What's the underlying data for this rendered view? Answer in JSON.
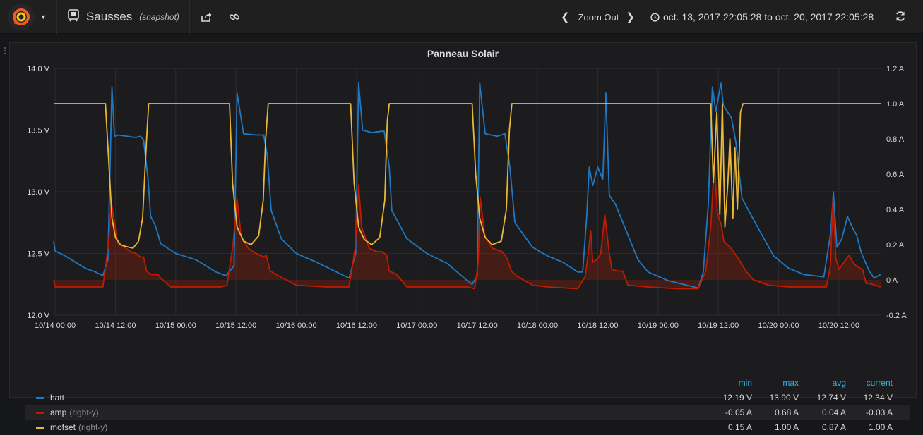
{
  "navbar": {
    "dashboard_name": "Sausses",
    "snapshot_label": "(snapshot)",
    "zoom_out_label": "Zoom Out",
    "time_range": "oct. 13, 2017 22:05:28 to oct. 20, 2017 22:05:28"
  },
  "panel": {
    "title": "Panneau Solair"
  },
  "legend": {
    "headers": {
      "min": "min",
      "max": "max",
      "avg": "avg",
      "current": "current"
    },
    "series": [
      {
        "name": "batt",
        "axis": "",
        "color": "#1f78c1",
        "min": "12.19 V",
        "max": "13.90 V",
        "avg": "12.74 V",
        "current": "12.34 V"
      },
      {
        "name": "amp",
        "axis": "(right-y)",
        "color": "#bf1b00",
        "min": "-0.05 A",
        "max": "0.68 A",
        "avg": "0.04 A",
        "current": "-0.03 A"
      },
      {
        "name": "mofset",
        "axis": "(right-y)",
        "color": "#eab839",
        "min": "0.15 A",
        "max": "1.00 A",
        "avg": "0.87 A",
        "current": "1.00 A"
      }
    ]
  },
  "chart_data": {
    "type": "line",
    "title": "Panneau Solair",
    "x_range_hours": [
      -0.3,
      164.3
    ],
    "x_ticks": [
      {
        "h": 0,
        "label": "10/14 00:00"
      },
      {
        "h": 12,
        "label": "10/14 12:00"
      },
      {
        "h": 24,
        "label": "10/15 00:00"
      },
      {
        "h": 36,
        "label": "10/15 12:00"
      },
      {
        "h": 48,
        "label": "10/16 00:00"
      },
      {
        "h": 60,
        "label": "10/16 12:00"
      },
      {
        "h": 72,
        "label": "10/17 00:00"
      },
      {
        "h": 84,
        "label": "10/17 12:00"
      },
      {
        "h": 96,
        "label": "10/18 00:00"
      },
      {
        "h": 108,
        "label": "10/18 12:00"
      },
      {
        "h": 120,
        "label": "10/19 00:00"
      },
      {
        "h": 132,
        "label": "10/19 12:00"
      },
      {
        "h": 144,
        "label": "10/20 00:00"
      },
      {
        "h": 156,
        "label": "10/20 12:00"
      }
    ],
    "y_left": {
      "min": 12.0,
      "max": 14.0,
      "ticks": [
        {
          "v": 12.0,
          "label": "12.0 V"
        },
        {
          "v": 12.5,
          "label": "12.5 V"
        },
        {
          "v": 13.0,
          "label": "13.0 V"
        },
        {
          "v": 13.5,
          "label": "13.5 V"
        },
        {
          "v": 14.0,
          "label": "14.0 V"
        }
      ]
    },
    "y_right": {
      "min": -0.2,
      "max": 1.2,
      "ticks": [
        {
          "v": -0.2,
          "label": "-0.2 A"
        },
        {
          "v": 0.0,
          "label": "0 A"
        },
        {
          "v": 0.2,
          "label": "0.2 A"
        },
        {
          "v": 0.4,
          "label": "0.4 A"
        },
        {
          "v": 0.6,
          "label": "0.6 A"
        },
        {
          "v": 0.8,
          "label": "0.8 A"
        },
        {
          "v": 1.0,
          "label": "1.0 A"
        },
        {
          "v": 1.2,
          "label": "1.2 A"
        }
      ]
    },
    "series": [
      {
        "name": "batt",
        "axis": "left",
        "color": "#1f78c1",
        "points": [
          [
            -0.3,
            12.6
          ],
          [
            0,
            12.52
          ],
          [
            2,
            12.48
          ],
          [
            4,
            12.43
          ],
          [
            6,
            12.38
          ],
          [
            8,
            12.35
          ],
          [
            9.5,
            12.32
          ],
          [
            10.5,
            12.45
          ],
          [
            11.3,
            13.85
          ],
          [
            11.8,
            13.45
          ],
          [
            12.5,
            13.46
          ],
          [
            16,
            13.44
          ],
          [
            17,
            13.45
          ],
          [
            17.6,
            13.42
          ],
          [
            18.5,
            13.1
          ],
          [
            19,
            12.8
          ],
          [
            20,
            12.72
          ],
          [
            21,
            12.58
          ],
          [
            24,
            12.5
          ],
          [
            28,
            12.45
          ],
          [
            32,
            12.35
          ],
          [
            34,
            12.32
          ],
          [
            35.6,
            12.4
          ],
          [
            36.2,
            13.8
          ],
          [
            37.5,
            13.47
          ],
          [
            40,
            13.46
          ],
          [
            41.5,
            13.46
          ],
          [
            42.2,
            13.3
          ],
          [
            43,
            12.85
          ],
          [
            45,
            12.62
          ],
          [
            48,
            12.5
          ],
          [
            52,
            12.43
          ],
          [
            56,
            12.35
          ],
          [
            58.5,
            12.3
          ],
          [
            59.8,
            12.5
          ],
          [
            60.4,
            13.88
          ],
          [
            61.2,
            13.5
          ],
          [
            63,
            13.48
          ],
          [
            65,
            13.49
          ],
          [
            65.5,
            13.49
          ],
          [
            66.5,
            13.2
          ],
          [
            67,
            12.85
          ],
          [
            70,
            12.62
          ],
          [
            74,
            12.5
          ],
          [
            78,
            12.42
          ],
          [
            80,
            12.35
          ],
          [
            82,
            12.28
          ],
          [
            83,
            12.25
          ],
          [
            84,
            12.32
          ],
          [
            84.5,
            13.88
          ],
          [
            85.6,
            13.47
          ],
          [
            88,
            13.45
          ],
          [
            89.5,
            13.47
          ],
          [
            90.5,
            13.2
          ],
          [
            91.5,
            12.75
          ],
          [
            95,
            12.55
          ],
          [
            98,
            12.48
          ],
          [
            101,
            12.43
          ],
          [
            104,
            12.35
          ],
          [
            105,
            12.35
          ],
          [
            105.8,
            12.8
          ],
          [
            106.3,
            13.2
          ],
          [
            107,
            13.05
          ],
          [
            108,
            13.2
          ],
          [
            109,
            13.1
          ],
          [
            109.6,
            13.8
          ],
          [
            110.3,
            12.97
          ],
          [
            111.5,
            12.9
          ],
          [
            113.5,
            12.7
          ],
          [
            116,
            12.45
          ],
          [
            118,
            12.35
          ],
          [
            122,
            12.28
          ],
          [
            126,
            12.24
          ],
          [
            128,
            12.22
          ],
          [
            129,
            12.35
          ],
          [
            130,
            12.9
          ],
          [
            130.8,
            13.85
          ],
          [
            131.5,
            13.65
          ],
          [
            132.5,
            13.88
          ],
          [
            133,
            13.7
          ],
          [
            134.6,
            13.6
          ],
          [
            135.5,
            13.4
          ],
          [
            136.7,
            12.95
          ],
          [
            138,
            12.85
          ],
          [
            140,
            12.7
          ],
          [
            143,
            12.48
          ],
          [
            146,
            12.38
          ],
          [
            149,
            12.33
          ],
          [
            153,
            12.31
          ],
          [
            154.4,
            12.68
          ],
          [
            154.9,
            13.0
          ],
          [
            155.6,
            12.55
          ],
          [
            156.6,
            12.62
          ],
          [
            157.7,
            12.8
          ],
          [
            158.8,
            12.7
          ],
          [
            159.5,
            12.65
          ],
          [
            160.5,
            12.5
          ],
          [
            162,
            12.36
          ],
          [
            163,
            12.3
          ],
          [
            164.3,
            12.33
          ]
        ]
      },
      {
        "name": "amp",
        "axis": "right",
        "color": "#bf1b00",
        "points": [
          [
            -0.3,
            0.0
          ],
          [
            0,
            -0.04
          ],
          [
            4,
            -0.04
          ],
          [
            8,
            -0.04
          ],
          [
            9.5,
            -0.04
          ],
          [
            10.6,
            0.2
          ],
          [
            11.2,
            0.44
          ],
          [
            12.4,
            0.21
          ],
          [
            14,
            0.18
          ],
          [
            15,
            0.16
          ],
          [
            16,
            0.15
          ],
          [
            17,
            0.13
          ],
          [
            17.6,
            0.13
          ],
          [
            18.2,
            0.05
          ],
          [
            19,
            0.03
          ],
          [
            20.5,
            0.03
          ],
          [
            21,
            0.01
          ],
          [
            23,
            -0.04
          ],
          [
            28,
            -0.04
          ],
          [
            33,
            -0.04
          ],
          [
            34.2,
            -0.03
          ],
          [
            35.4,
            0.2
          ],
          [
            36.2,
            0.46
          ],
          [
            37,
            0.25
          ],
          [
            38.4,
            0.18
          ],
          [
            40,
            0.15
          ],
          [
            41.5,
            0.13
          ],
          [
            42,
            0.14
          ],
          [
            42.8,
            0.05
          ],
          [
            44,
            0.03
          ],
          [
            48,
            -0.03
          ],
          [
            54,
            -0.04
          ],
          [
            58.5,
            -0.04
          ],
          [
            59.7,
            0.18
          ],
          [
            60.4,
            0.54
          ],
          [
            61,
            0.3
          ],
          [
            62.5,
            0.18
          ],
          [
            64,
            0.16
          ],
          [
            65,
            0.16
          ],
          [
            66,
            0.14
          ],
          [
            66.5,
            0.05
          ],
          [
            68,
            0.03
          ],
          [
            70,
            -0.04
          ],
          [
            78,
            -0.04
          ],
          [
            82,
            -0.04
          ],
          [
            83.5,
            -0.05
          ],
          [
            84.2,
            0.1
          ],
          [
            84.6,
            0.47
          ],
          [
            85.5,
            0.25
          ],
          [
            87,
            0.18
          ],
          [
            89,
            0.16
          ],
          [
            90,
            0.12
          ],
          [
            90.8,
            0.05
          ],
          [
            92,
            0.02
          ],
          [
            95,
            -0.03
          ],
          [
            98,
            -0.04
          ],
          [
            104,
            -0.05
          ],
          [
            105.5,
            0.02
          ],
          [
            106.1,
            0.15
          ],
          [
            106.6,
            0.28
          ],
          [
            107,
            0.1
          ],
          [
            108,
            0.12
          ],
          [
            108.6,
            0.15
          ],
          [
            109.4,
            0.37
          ],
          [
            110.3,
            0.15
          ],
          [
            110.8,
            0.06
          ],
          [
            112,
            0.05
          ],
          [
            113,
            0.05
          ],
          [
            114,
            -0.03
          ],
          [
            118,
            -0.04
          ],
          [
            124,
            -0.05
          ],
          [
            128,
            -0.05
          ],
          [
            129.5,
            0.05
          ],
          [
            130.5,
            0.3
          ],
          [
            131.2,
            0.67
          ],
          [
            131.8,
            0.38
          ],
          [
            132.6,
            0.31
          ],
          [
            133.1,
            0.22
          ],
          [
            134.5,
            0.18
          ],
          [
            136,
            0.12
          ],
          [
            137.5,
            0.05
          ],
          [
            139,
            0.0
          ],
          [
            142,
            -0.03
          ],
          [
            146,
            -0.04
          ],
          [
            151,
            -0.04
          ],
          [
            153.5,
            -0.04
          ],
          [
            154.3,
            0.08
          ],
          [
            154.8,
            0.45
          ],
          [
            155.4,
            0.12
          ],
          [
            156,
            0.06
          ],
          [
            157,
            0.1
          ],
          [
            158,
            0.14
          ],
          [
            159,
            0.09
          ],
          [
            160,
            0.07
          ],
          [
            160.7,
            0.06
          ],
          [
            161.4,
            -0.02
          ],
          [
            162,
            -0.02
          ],
          [
            164.3,
            -0.04
          ]
        ]
      },
      {
        "name": "mofset",
        "axis": "right",
        "color": "#eab839",
        "points": [
          [
            -0.3,
            1.0
          ],
          [
            4,
            1.0
          ],
          [
            9.5,
            1.0
          ],
          [
            10,
            1.0
          ],
          [
            10.8,
            0.6
          ],
          [
            11.3,
            0.35
          ],
          [
            12,
            0.24
          ],
          [
            13,
            0.2
          ],
          [
            14,
            0.19
          ],
          [
            15.5,
            0.18
          ],
          [
            16.6,
            0.22
          ],
          [
            17.4,
            0.35
          ],
          [
            18.2,
            0.8
          ],
          [
            18.6,
            1.0
          ],
          [
            20,
            1.0
          ],
          [
            21,
            1.0
          ],
          [
            22,
            1.0
          ],
          [
            32,
            1.0
          ],
          [
            34,
            1.0
          ],
          [
            34.7,
            1.0
          ],
          [
            35.3,
            0.55
          ],
          [
            36.2,
            0.3
          ],
          [
            37.5,
            0.22
          ],
          [
            39,
            0.2
          ],
          [
            40.5,
            0.25
          ],
          [
            41.4,
            0.45
          ],
          [
            41.9,
            0.8
          ],
          [
            42.4,
            1.0
          ],
          [
            52,
            1.0
          ],
          [
            58,
            1.0
          ],
          [
            58.8,
            1.0
          ],
          [
            59.5,
            0.55
          ],
          [
            60.4,
            0.3
          ],
          [
            61.5,
            0.23
          ],
          [
            63,
            0.2
          ],
          [
            64.6,
            0.24
          ],
          [
            65.6,
            0.45
          ],
          [
            66.1,
            0.9
          ],
          [
            66.5,
            1.0
          ],
          [
            70,
            1.0
          ],
          [
            82,
            1.0
          ],
          [
            83,
            1.0
          ],
          [
            83.7,
            0.6
          ],
          [
            84.5,
            0.35
          ],
          [
            85.6,
            0.24
          ],
          [
            87,
            0.2
          ],
          [
            88.8,
            0.22
          ],
          [
            89.8,
            0.4
          ],
          [
            90.4,
            0.85
          ],
          [
            90.9,
            1.0
          ],
          [
            104,
            1.0
          ],
          [
            120,
            1.0
          ],
          [
            130,
            1.0
          ],
          [
            130.5,
            1.0
          ],
          [
            131,
            0.55
          ],
          [
            131.7,
            0.95
          ],
          [
            132.3,
            0.37
          ],
          [
            132.8,
            1.0
          ],
          [
            133.3,
            0.3
          ],
          [
            133.9,
            0.55
          ],
          [
            134.3,
            0.8
          ],
          [
            134.9,
            0.35
          ],
          [
            135.3,
            0.75
          ],
          [
            135.8,
            0.4
          ],
          [
            136.4,
            0.95
          ],
          [
            136.9,
            1.0
          ],
          [
            148,
            1.0
          ],
          [
            164.3,
            1.0
          ]
        ]
      }
    ]
  }
}
